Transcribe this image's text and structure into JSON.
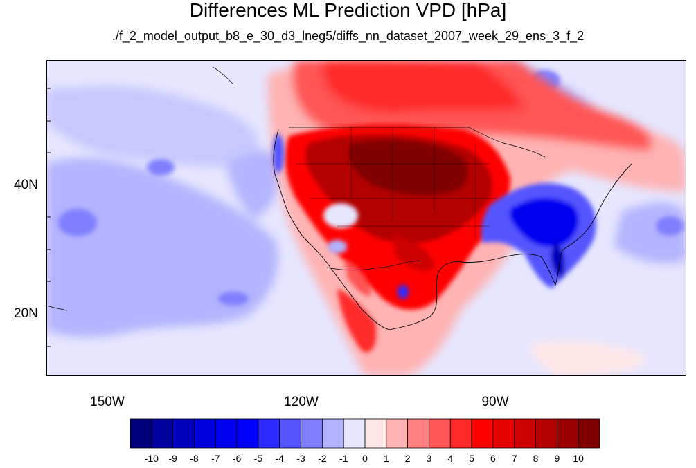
{
  "title": "Differences ML Prediction VPD [hPa]",
  "subtitle": "./f_2_model_output_b8_e_30_d3_lneg5/diffs_nn_dataset_2007_week_29_ens_3_f_2",
  "map": {
    "projection": "cylindrical-equidistant",
    "extent": {
      "lon": [
        -160,
        -61
      ],
      "lat": [
        11,
        60
      ]
    },
    "grid": false,
    "lat_ticks": [
      {
        "value": 20,
        "label": "20N"
      },
      {
        "value": 40,
        "label": "40N"
      }
    ],
    "lon_ticks": [
      {
        "value": -150,
        "label": "150W"
      },
      {
        "value": -120,
        "label": "120W"
      },
      {
        "value": -90,
        "label": "90W"
      }
    ],
    "features": [
      "coastlines",
      "country-borders",
      "us-state-borders"
    ]
  },
  "colorbar": {
    "labels": [
      "-10",
      "-9",
      "-8",
      "-7",
      "-6",
      "-5",
      "-4",
      "-3",
      "-2",
      "-1",
      "0",
      "1",
      "2",
      "3",
      "4",
      "5",
      "6",
      "7",
      "8",
      "9",
      "10"
    ],
    "colors": [
      "#00007a",
      "#00009c",
      "#0000bd",
      "#0000dc",
      "#0000f0",
      "#0000ff",
      "#2a2aff",
      "#5555ff",
      "#8080ff",
      "#b3b3ff",
      "#e6e6ff",
      "#ffe6e6",
      "#ffb3b3",
      "#ff8080",
      "#ff5555",
      "#ff2a2a",
      "#ff0000",
      "#e60000",
      "#cc0000",
      "#b30000",
      "#990000",
      "#800000"
    ]
  }
}
